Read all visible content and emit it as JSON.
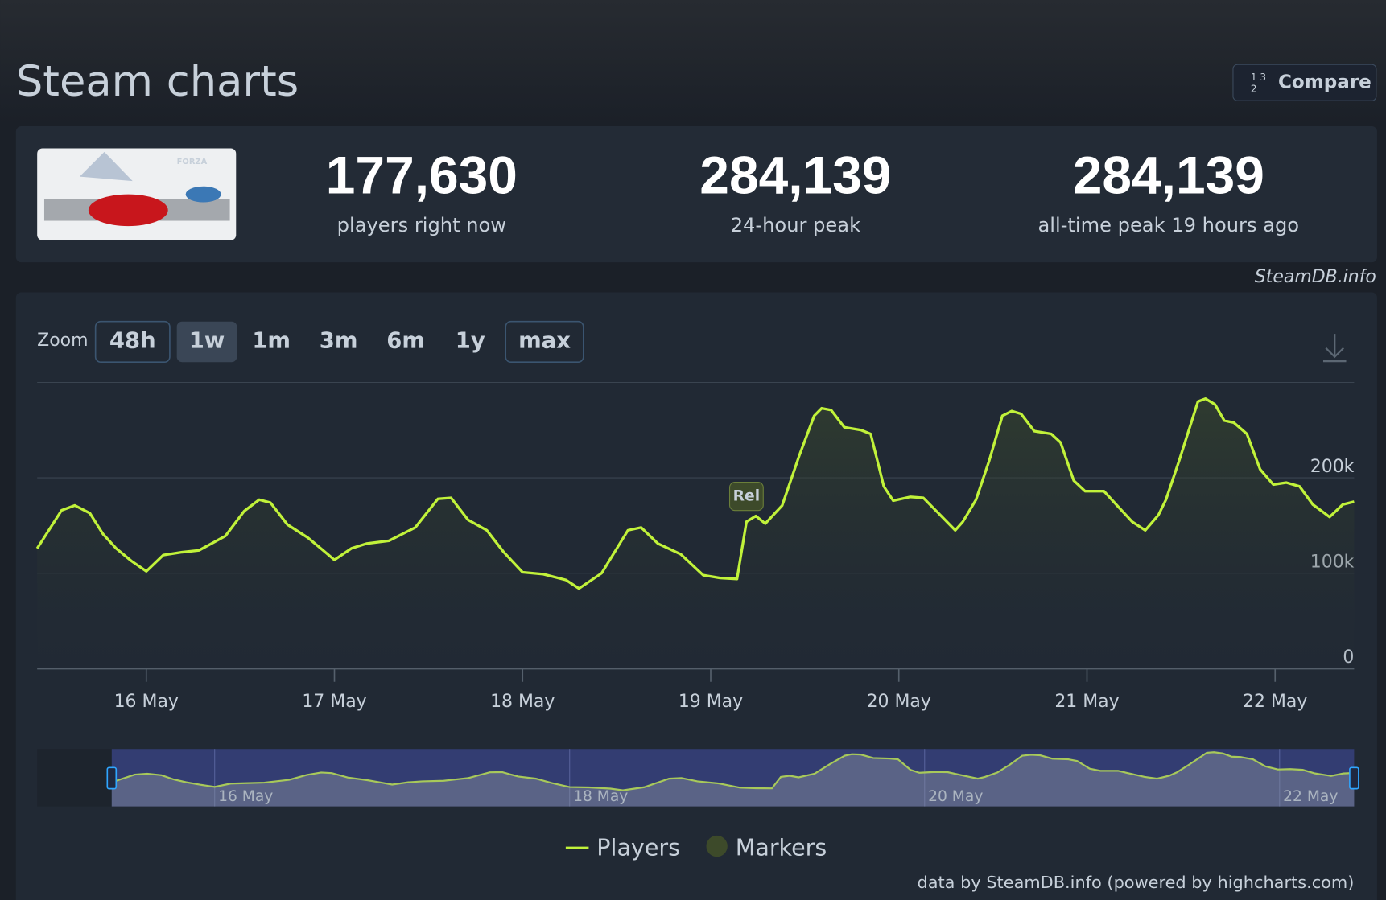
{
  "header": {
    "title": "Steam charts",
    "compare": "Compare"
  },
  "stats": [
    {
      "value": "177,630",
      "label": "players right now"
    },
    {
      "value": "284,139",
      "label": "24-hour peak"
    },
    {
      "value": "284,139",
      "label": "all-time peak 19 hours ago"
    }
  ],
  "watermark": "SteamDB.info",
  "zoom": {
    "label": "Zoom",
    "options": [
      "48h",
      "1w",
      "1m",
      "3m",
      "6m",
      "1y",
      "max"
    ]
  },
  "chart_data": {
    "type": "line",
    "x": [
      15.42,
      15.55,
      15.62,
      15.7,
      15.77,
      15.84,
      15.92,
      16.0,
      16.09,
      16.19,
      16.28,
      16.42,
      16.52,
      16.6,
      16.66,
      16.75,
      16.86,
      16.94,
      17.0,
      17.09,
      17.17,
      17.29,
      17.43,
      17.55,
      17.62,
      17.71,
      17.81,
      17.9,
      18.0,
      18.11,
      18.23,
      18.3,
      18.42,
      18.56,
      18.63,
      18.72,
      18.84,
      18.96,
      19.05,
      19.14,
      19.19,
      19.24,
      19.29,
      19.38,
      19.47,
      19.55,
      19.59,
      19.64,
      19.71,
      19.8,
      19.85,
      19.92,
      19.97,
      20.06,
      20.13,
      20.2,
      20.3,
      20.34,
      20.41,
      20.48,
      20.55,
      20.6,
      20.65,
      20.72,
      20.81,
      20.86,
      20.93,
      20.99,
      21.09,
      21.16,
      21.24,
      21.31,
      21.38,
      21.42,
      21.49,
      21.59,
      21.63,
      21.68,
      21.73,
      21.78,
      21.85,
      21.92,
      21.99,
      22.06,
      22.13,
      22.2,
      22.29,
      22.36,
      22.42
    ],
    "series": [
      {
        "name": "Players",
        "color": "#c1f23a",
        "values": [
          126000,
          166000,
          171000,
          163000,
          141000,
          126000,
          113000,
          102000,
          119000,
          122000,
          124000,
          139000,
          165000,
          177000,
          174000,
          151000,
          137000,
          124000,
          114000,
          126000,
          131000,
          134000,
          148000,
          178000,
          179000,
          156000,
          145000,
          122000,
          101000,
          99000,
          93000,
          84000,
          100000,
          145000,
          148000,
          131000,
          120000,
          98000,
          95000,
          94000,
          154000,
          160000,
          152000,
          171000,
          223000,
          265000,
          273000,
          271000,
          253000,
          250000,
          246000,
          191000,
          176000,
          180000,
          179000,
          165000,
          145000,
          154000,
          177000,
          218000,
          265000,
          270000,
          267000,
          249000,
          246000,
          237000,
          197000,
          186000,
          186000,
          171000,
          154000,
          145000,
          161000,
          177000,
          218000,
          280000,
          283000,
          277000,
          260000,
          258000,
          246000,
          209000,
          193000,
          195000,
          191000,
          172000,
          159000,
          172000,
          175000
        ]
      }
    ],
    "xlim": [
      15.42,
      22.42
    ],
    "xticks": [
      {
        "value": 16,
        "label": "16 May"
      },
      {
        "value": 17,
        "label": "17 May"
      },
      {
        "value": 18,
        "label": "18 May"
      },
      {
        "value": 19,
        "label": "19 May"
      },
      {
        "value": 20,
        "label": "20 May"
      },
      {
        "value": 21,
        "label": "21 May"
      },
      {
        "value": 22,
        "label": "22 May"
      }
    ],
    "ylim": [
      0,
      300000
    ],
    "yticks": [
      0,
      {
        "value": 100000,
        "label": "100k"
      },
      {
        "value": 200000,
        "label": "200k"
      }
    ],
    "grid": true,
    "annotations": [
      {
        "text": "Rel",
        "x": 19.19
      }
    ],
    "navigator": {
      "xlim": [
        15,
        22.42
      ],
      "xticks": [
        {
          "value": 16,
          "label": "16 May"
        },
        {
          "value": 18,
          "label": "18 May"
        },
        {
          "value": 20,
          "label": "20 May"
        },
        {
          "value": 22,
          "label": "22 May"
        }
      ]
    },
    "legend": [
      "Players",
      "Markers"
    ],
    "credits": "data by SteamDB.info (powered by highcharts.com)"
  }
}
